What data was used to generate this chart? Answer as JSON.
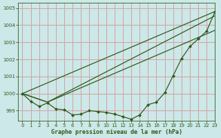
{
  "title": "Graphe pression niveau de la mer (hPa)",
  "bg_color": "#cce8e8",
  "grid_color": "#d4a0a0",
  "line_color": "#2d5a1b",
  "xlim": [
    -0.5,
    23
  ],
  "ylim": [
    998.4,
    1005.3
  ],
  "yticks": [
    999,
    1000,
    1001,
    1002,
    1003,
    1004,
    1005
  ],
  "xticks": [
    0,
    1,
    2,
    3,
    4,
    5,
    6,
    7,
    8,
    9,
    10,
    11,
    12,
    13,
    14,
    15,
    16,
    17,
    18,
    19,
    20,
    21,
    22,
    23
  ],
  "series": [
    {
      "x": [
        0,
        23
      ],
      "y": [
        1000.0,
        1004.8
      ],
      "has_markers": false
    },
    {
      "x": [
        0,
        3,
        23
      ],
      "y": [
        1000.0,
        999.5,
        1004.55
      ],
      "has_markers": false
    },
    {
      "x": [
        0,
        3,
        23
      ],
      "y": [
        1000.0,
        999.5,
        1003.7
      ],
      "has_markers": false
    },
    {
      "x": [
        0,
        1,
        2,
        3,
        4,
        5,
        6,
        7,
        8,
        9,
        10,
        11,
        12,
        13,
        14,
        15,
        16,
        17,
        18,
        19,
        20,
        21,
        22,
        23
      ],
      "y": [
        1000.0,
        999.55,
        999.25,
        999.45,
        999.1,
        999.05,
        998.75,
        998.8,
        999.0,
        998.95,
        998.9,
        998.8,
        998.65,
        998.5,
        998.75,
        999.35,
        999.5,
        1000.05,
        1001.05,
        1002.05,
        1002.75,
        1003.2,
        1003.65,
        1004.8
      ],
      "has_markers": true
    }
  ]
}
